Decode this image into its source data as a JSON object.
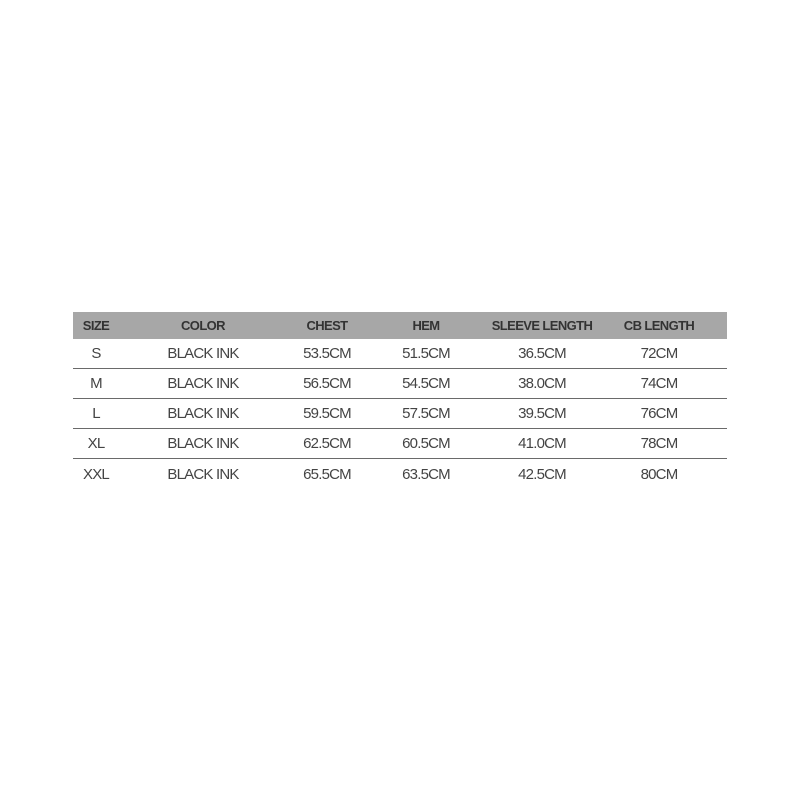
{
  "size_chart": {
    "headers": [
      "SIZE",
      "COLOR",
      "CHEST",
      "HEM",
      "SLEEVE LENGTH",
      "CB LENGTH"
    ],
    "rows": [
      [
        "S",
        "BLACK INK",
        "53.5CM",
        "51.5CM",
        "36.5CM",
        "72CM"
      ],
      [
        "M",
        "BLACK INK",
        "56.5CM",
        "54.5CM",
        "38.0CM",
        "74CM"
      ],
      [
        "L",
        "BLACK INK",
        "59.5CM",
        "57.5CM",
        "39.5CM",
        "76CM"
      ],
      [
        "XL",
        "BLACK INK",
        "62.5CM",
        "60.5CM",
        "41.0CM",
        "78CM"
      ],
      [
        "XXL",
        "BLACK INK",
        "65.5CM",
        "63.5CM",
        "42.5CM",
        "80CM"
      ]
    ],
    "header_bg": "#a7a7a7"
  }
}
